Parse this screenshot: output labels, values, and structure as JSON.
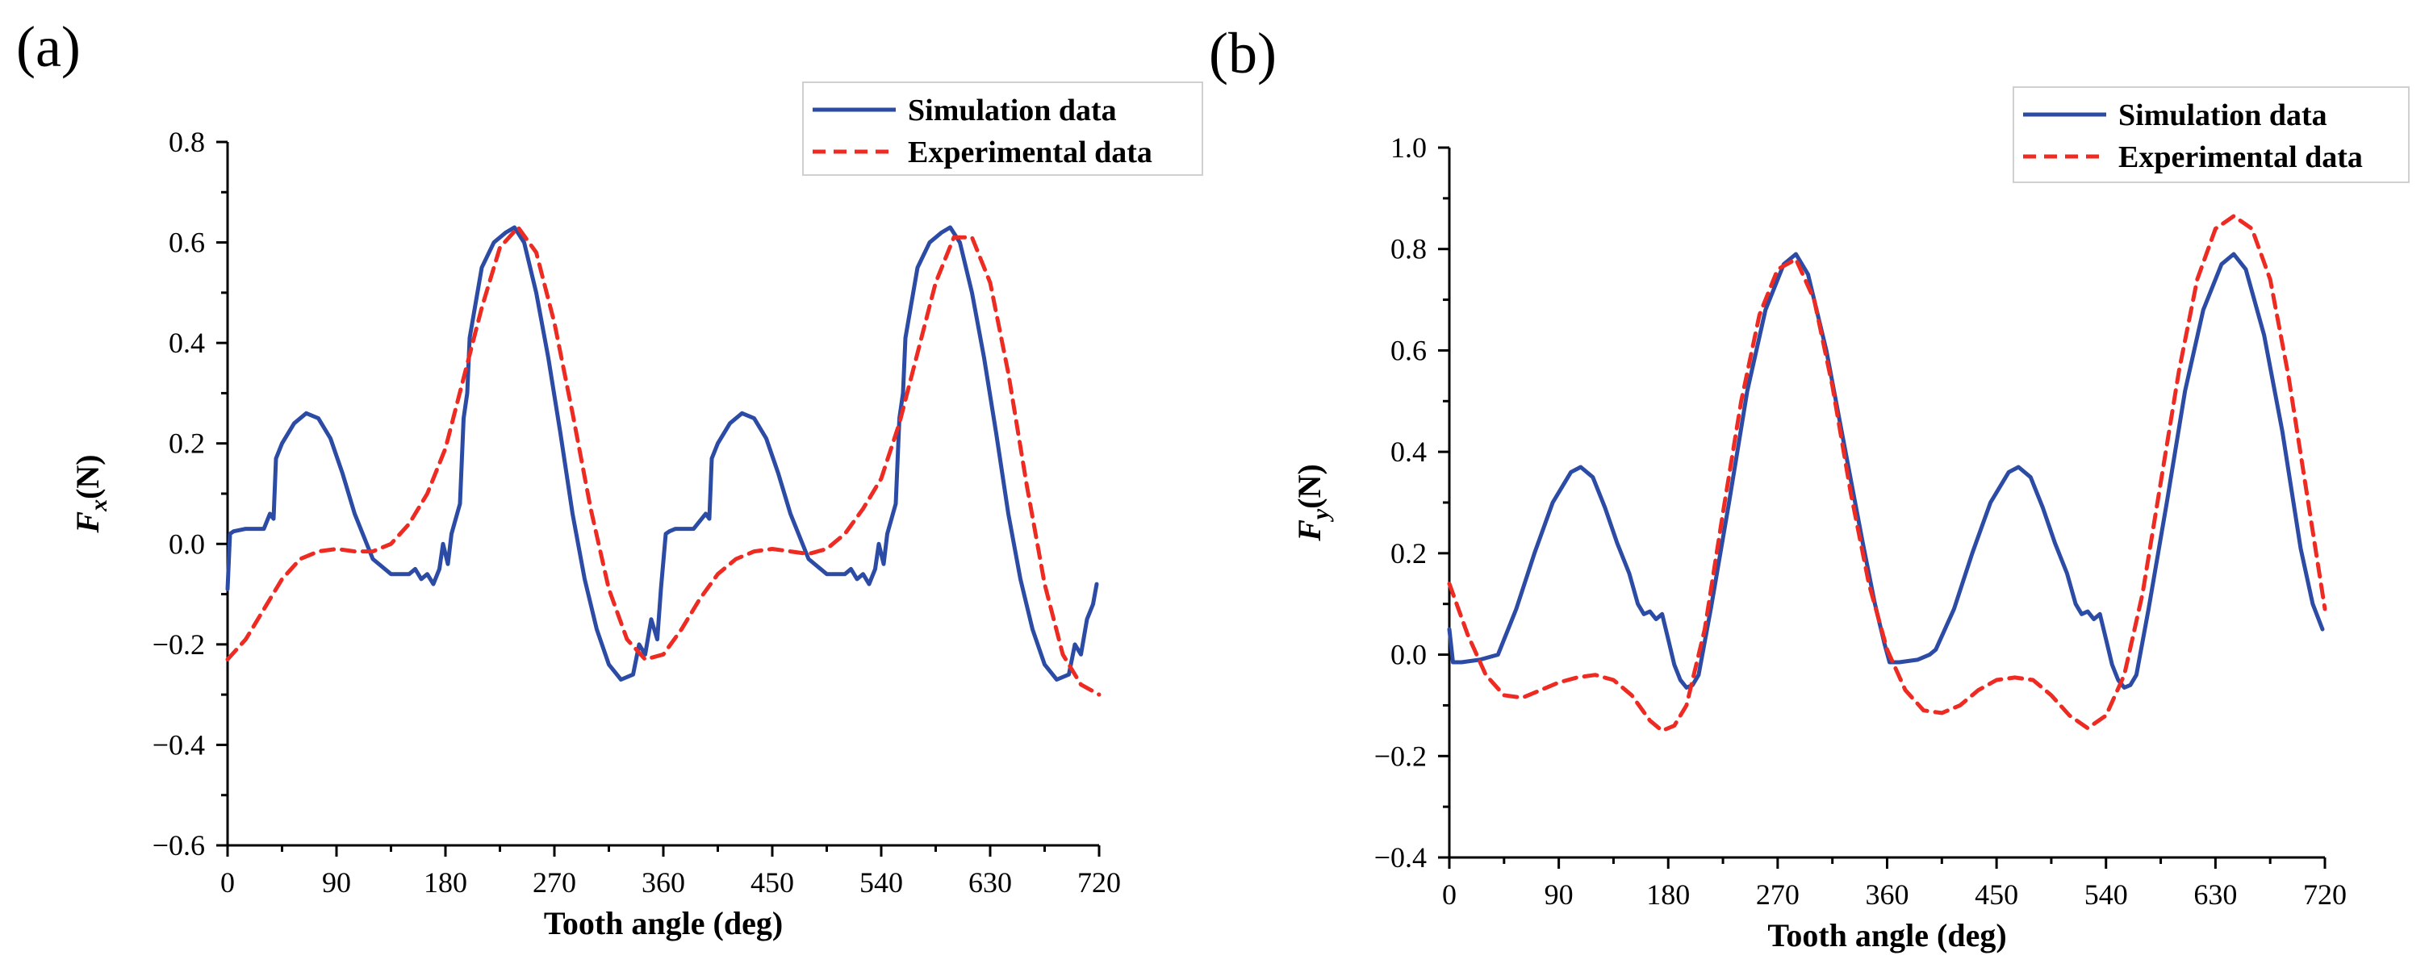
{
  "figure": {
    "colors": {
      "simulation": "#2b4ba5",
      "experimental": "#ee2b22",
      "axis": "#000000"
    }
  },
  "chart_data": [
    {
      "type": "line",
      "panel_label": "(a)",
      "title": "",
      "xlabel": "Tooth angle (deg)",
      "ylabel_main": "F",
      "ylabel_sub": "x",
      "ylabel_unit": "(N)",
      "xlim": [
        0,
        720
      ],
      "ylim": [
        -0.6,
        0.8
      ],
      "xticks": [
        0,
        90,
        180,
        270,
        360,
        450,
        540,
        630,
        720
      ],
      "xtick_labels": [
        "0",
        "90",
        "180",
        "270",
        "360",
        "450",
        "540",
        "630",
        "720"
      ],
      "yticks": [
        -0.6,
        -0.4,
        -0.2,
        0.0,
        0.2,
        0.4,
        0.6,
        0.8
      ],
      "ytick_labels": [
        "−0.6",
        "−0.4",
        "−0.2",
        "0.0",
        "0.2",
        "0.4",
        "0.6",
        "0.8"
      ],
      "legend_position": "top-right",
      "series": [
        {
          "name": "Simulation data",
          "style": "solid",
          "x": [
            0,
            2,
            5,
            15,
            30,
            35,
            38,
            40,
            45,
            55,
            65,
            75,
            85,
            95,
            105,
            120,
            135,
            145,
            150,
            155,
            160,
            165,
            170,
            175,
            178,
            182,
            185,
            192,
            195,
            198,
            200,
            210,
            220,
            230,
            237,
            245,
            255,
            265,
            275,
            285,
            295,
            305,
            315,
            325,
            335,
            340,
            345,
            350,
            355,
            358,
            362,
            365,
            370,
            385,
            395,
            398,
            400,
            405,
            415,
            425,
            435,
            445,
            455,
            465,
            480,
            495,
            505,
            510,
            515,
            520,
            525,
            530,
            535,
            538,
            542,
            545,
            552,
            555,
            558,
            560,
            570,
            580,
            590,
            597,
            605,
            615,
            625,
            635,
            645,
            655,
            665,
            675,
            685,
            695,
            700,
            705,
            710,
            715,
            718
          ],
          "values": [
            -0.09,
            0.02,
            0.025,
            0.03,
            0.03,
            0.06,
            0.05,
            0.17,
            0.2,
            0.24,
            0.26,
            0.25,
            0.21,
            0.14,
            0.06,
            -0.03,
            -0.06,
            -0.06,
            -0.06,
            -0.05,
            -0.07,
            -0.06,
            -0.08,
            -0.05,
            0.0,
            -0.04,
            0.02,
            0.08,
            0.25,
            0.3,
            0.41,
            0.55,
            0.6,
            0.62,
            0.63,
            0.6,
            0.5,
            0.37,
            0.22,
            0.06,
            -0.07,
            -0.17,
            -0.24,
            -0.27,
            -0.26,
            -0.2,
            -0.22,
            -0.15,
            -0.19,
            -0.09,
            0.02,
            0.025,
            0.03,
            0.03,
            0.06,
            0.05,
            0.17,
            0.2,
            0.24,
            0.26,
            0.25,
            0.21,
            0.14,
            0.06,
            -0.03,
            -0.06,
            -0.06,
            -0.06,
            -0.05,
            -0.07,
            -0.06,
            -0.08,
            -0.05,
            0.0,
            -0.04,
            0.02,
            0.08,
            0.25,
            0.3,
            0.41,
            0.55,
            0.6,
            0.62,
            0.63,
            0.6,
            0.5,
            0.37,
            0.22,
            0.06,
            -0.07,
            -0.17,
            -0.24,
            -0.27,
            -0.26,
            -0.2,
            -0.22,
            -0.15,
            -0.12,
            -0.08
          ]
        },
        {
          "name": "Experimental data",
          "style": "dashed",
          "x": [
            0,
            15,
            30,
            45,
            60,
            75,
            90,
            105,
            120,
            135,
            150,
            165,
            180,
            195,
            210,
            225,
            240,
            255,
            270,
            285,
            300,
            315,
            330,
            345,
            360,
            375,
            390,
            405,
            420,
            435,
            450,
            465,
            480,
            495,
            510,
            525,
            540,
            555,
            570,
            585,
            600,
            615,
            630,
            645,
            660,
            675,
            690,
            705,
            720
          ],
          "values": [
            -0.23,
            -0.19,
            -0.13,
            -0.07,
            -0.03,
            -0.015,
            -0.01,
            -0.015,
            -0.015,
            0.0,
            0.04,
            0.1,
            0.19,
            0.33,
            0.47,
            0.59,
            0.63,
            0.58,
            0.44,
            0.26,
            0.07,
            -0.09,
            -0.19,
            -0.23,
            -0.22,
            -0.17,
            -0.11,
            -0.06,
            -0.03,
            -0.015,
            -0.01,
            -0.015,
            -0.02,
            -0.01,
            0.02,
            0.07,
            0.13,
            0.24,
            0.38,
            0.52,
            0.61,
            0.61,
            0.52,
            0.34,
            0.12,
            -0.08,
            -0.22,
            -0.28,
            -0.3
          ]
        }
      ]
    },
    {
      "type": "line",
      "panel_label": "(b)",
      "title": "",
      "xlabel": "Tooth angle (deg)",
      "ylabel_main": "F",
      "ylabel_sub": "y",
      "ylabel_unit": "(N)",
      "xlim": [
        0,
        720
      ],
      "ylim": [
        -0.4,
        1.0
      ],
      "xticks": [
        0,
        90,
        180,
        270,
        360,
        450,
        540,
        630,
        720
      ],
      "xtick_labels": [
        "0",
        "90",
        "180",
        "270",
        "360",
        "450",
        "540",
        "630",
        "720"
      ],
      "yticks": [
        -0.4,
        -0.2,
        0.0,
        0.2,
        0.4,
        0.6,
        0.8,
        1.0
      ],
      "ytick_labels": [
        "−0.4",
        "−0.2",
        "0.0",
        "0.2",
        "0.4",
        "0.6",
        "0.8",
        "1.0"
      ],
      "legend_position": "top-right",
      "series": [
        {
          "name": "Simulation data",
          "style": "solid",
          "x": [
            0,
            3,
            10,
            25,
            40,
            55,
            70,
            85,
            100,
            108,
            118,
            128,
            138,
            148,
            155,
            160,
            165,
            170,
            175,
            180,
            185,
            190,
            195,
            200,
            205,
            215,
            230,
            245,
            260,
            275,
            285,
            295,
            310,
            325,
            340,
            350,
            358,
            362,
            365,
            370,
            385,
            395,
            400,
            415,
            430,
            445,
            460,
            468,
            478,
            488,
            498,
            508,
            515,
            520,
            525,
            530,
            535,
            540,
            545,
            550,
            555,
            560,
            565,
            575,
            590,
            605,
            620,
            635,
            645,
            655,
            670,
            685,
            700,
            710,
            718
          ],
          "values": [
            0.05,
            -0.015,
            -0.015,
            -0.01,
            0.0,
            0.09,
            0.2,
            0.3,
            0.36,
            0.37,
            0.35,
            0.29,
            0.22,
            0.16,
            0.1,
            0.08,
            0.085,
            0.07,
            0.08,
            0.03,
            -0.02,
            -0.05,
            -0.065,
            -0.06,
            -0.04,
            0.09,
            0.3,
            0.52,
            0.68,
            0.77,
            0.79,
            0.75,
            0.6,
            0.41,
            0.22,
            0.1,
            0.02,
            -0.015,
            -0.015,
            -0.015,
            -0.01,
            0.0,
            0.01,
            0.09,
            0.2,
            0.3,
            0.36,
            0.37,
            0.35,
            0.29,
            0.22,
            0.16,
            0.1,
            0.08,
            0.085,
            0.07,
            0.08,
            0.03,
            -0.02,
            -0.05,
            -0.065,
            -0.06,
            -0.04,
            0.09,
            0.3,
            0.52,
            0.68,
            0.77,
            0.79,
            0.76,
            0.63,
            0.44,
            0.21,
            0.1,
            0.05
          ]
        },
        {
          "name": "Experimental data",
          "style": "dashed",
          "x": [
            0,
            15,
            30,
            45,
            60,
            75,
            90,
            105,
            120,
            135,
            150,
            165,
            175,
            185,
            195,
            210,
            225,
            240,
            255,
            270,
            285,
            300,
            315,
            330,
            345,
            360,
            375,
            390,
            405,
            420,
            435,
            450,
            465,
            480,
            495,
            510,
            525,
            540,
            555,
            570,
            585,
            600,
            615,
            630,
            645,
            660,
            675,
            690,
            705,
            720
          ],
          "values": [
            0.14,
            0.04,
            -0.04,
            -0.08,
            -0.085,
            -0.07,
            -0.055,
            -0.045,
            -0.04,
            -0.05,
            -0.08,
            -0.13,
            -0.15,
            -0.14,
            -0.1,
            0.05,
            0.28,
            0.5,
            0.67,
            0.76,
            0.78,
            0.7,
            0.53,
            0.32,
            0.14,
            0.01,
            -0.07,
            -0.11,
            -0.115,
            -0.1,
            -0.07,
            -0.05,
            -0.045,
            -0.05,
            -0.08,
            -0.12,
            -0.145,
            -0.12,
            -0.04,
            0.12,
            0.34,
            0.56,
            0.74,
            0.84,
            0.865,
            0.84,
            0.74,
            0.55,
            0.32,
            0.09
          ]
        }
      ]
    }
  ]
}
